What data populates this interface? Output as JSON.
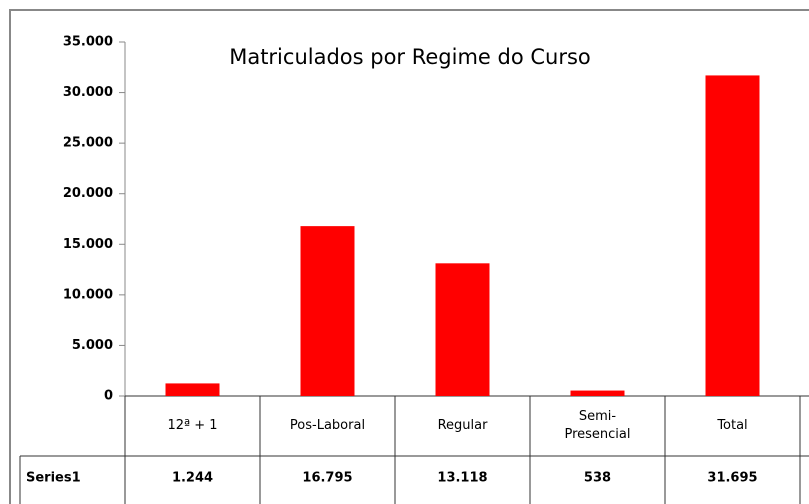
{
  "chart_data": {
    "type": "bar",
    "title": "Matriculados por Regime do Curso",
    "categories": [
      "12ª + 1",
      "Pos-Laboral",
      "Regular",
      "Semi-Presencial",
      "Total"
    ],
    "series": [
      {
        "name": "Series1",
        "color": "#ff0000",
        "values": [
          1244,
          16795,
          13118,
          538,
          31695
        ],
        "value_labels": [
          "1.244",
          "16.795",
          "13.118",
          "538",
          "31.695"
        ]
      }
    ],
    "ylim": [
      0,
      35000
    ],
    "yticks": [
      0,
      {
        "value": 5000,
        "label": "5.000"
      },
      {
        "value": 10000,
        "label": "10.000"
      },
      {
        "value": 15000,
        "label": "15.000"
      },
      {
        "value": 20000,
        "label": "20.000"
      },
      {
        "value": 25000,
        "label": "25.000"
      },
      {
        "value": 30000,
        "label": "30.000"
      },
      {
        "value": 35000,
        "label": "35.000"
      }
    ],
    "data_table": true
  }
}
